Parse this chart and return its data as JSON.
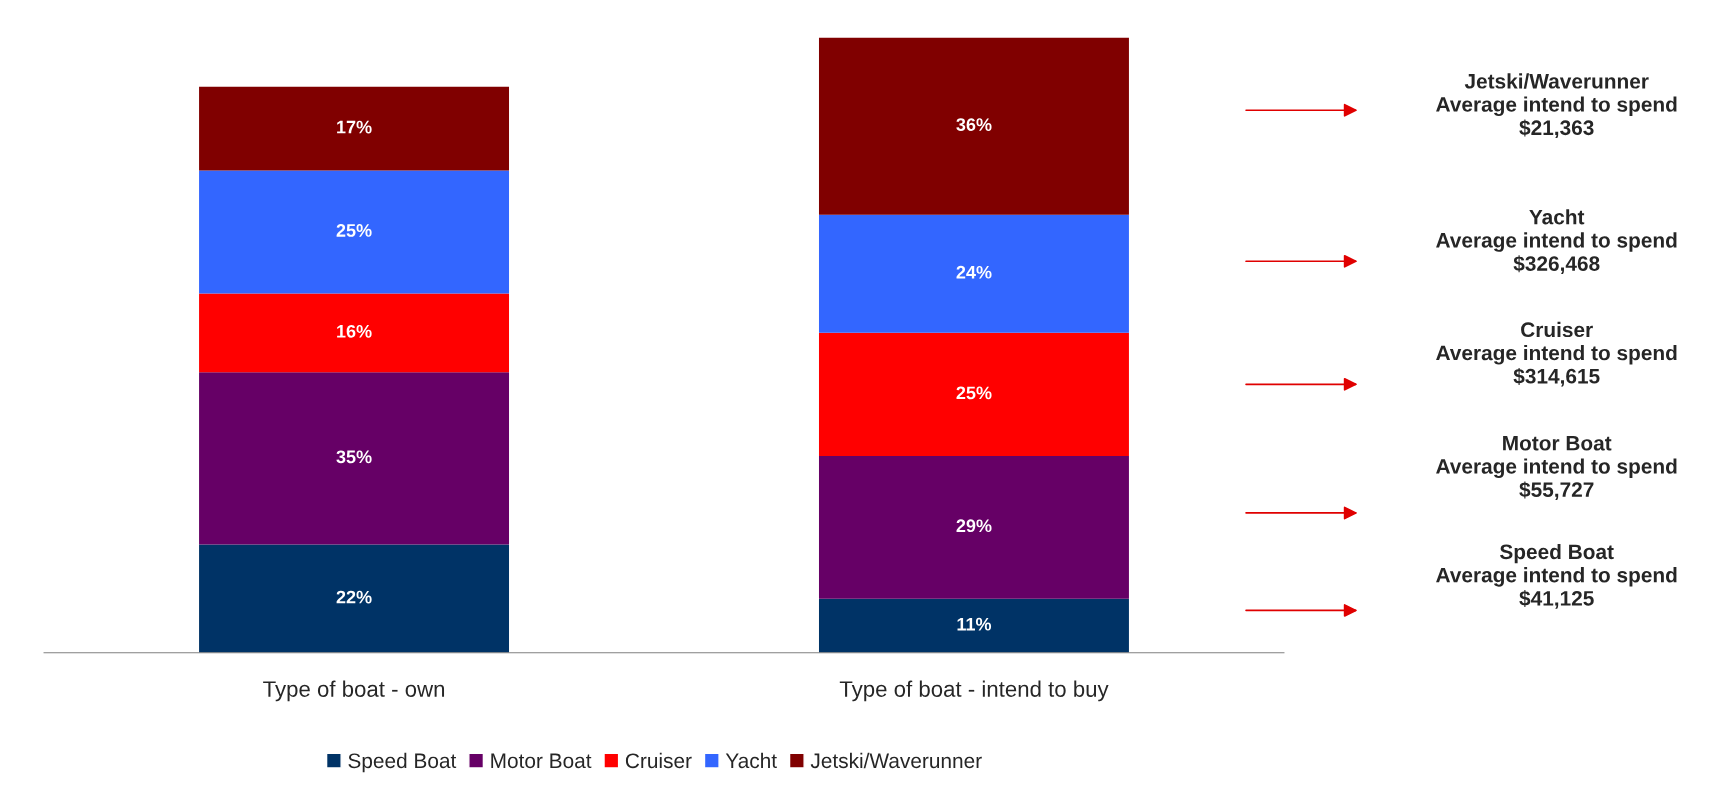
{
  "chart_data": {
    "type": "bar",
    "stacked": true,
    "legend": "bottom",
    "grid": false,
    "tick_labels": "x",
    "categories": [
      "Type of boat - own",
      "Type of boat - intend to buy"
    ],
    "series": [
      {
        "name": "Speed Boat",
        "color": "#003366",
        "values": [
          22,
          11
        ],
        "value_labels": [
          "22%",
          "11%"
        ]
      },
      {
        "name": "Motor Boat",
        "color": "#660066",
        "values": [
          35,
          29
        ],
        "value_labels": [
          "35%",
          "29%"
        ]
      },
      {
        "name": "Cruiser",
        "color": "#ff0000",
        "values": [
          16,
          25
        ],
        "value_labels": [
          "16%",
          "25%"
        ]
      },
      {
        "name": "Yacht",
        "color": "#3366ff",
        "values": [
          25,
          24
        ],
        "value_labels": [
          "25%",
          "24%"
        ]
      },
      {
        "name": "Jetski/Waverunner",
        "color": "#800000",
        "values": [
          17,
          36
        ],
        "value_labels": [
          "17%",
          "36%"
        ]
      }
    ],
    "annotations": [
      "Jetski/Waverunner\nAverage intend to spend\n$21,363",
      "Yacht\nAverage intend to spend\n$326,468",
      "Cruiser\nAverage intend to spend\n$314,615",
      "Motor Boat\nAverage intend to spend\n$55,727",
      "Speed Boat\nAverage intend to spend\n$41,125"
    ]
  }
}
